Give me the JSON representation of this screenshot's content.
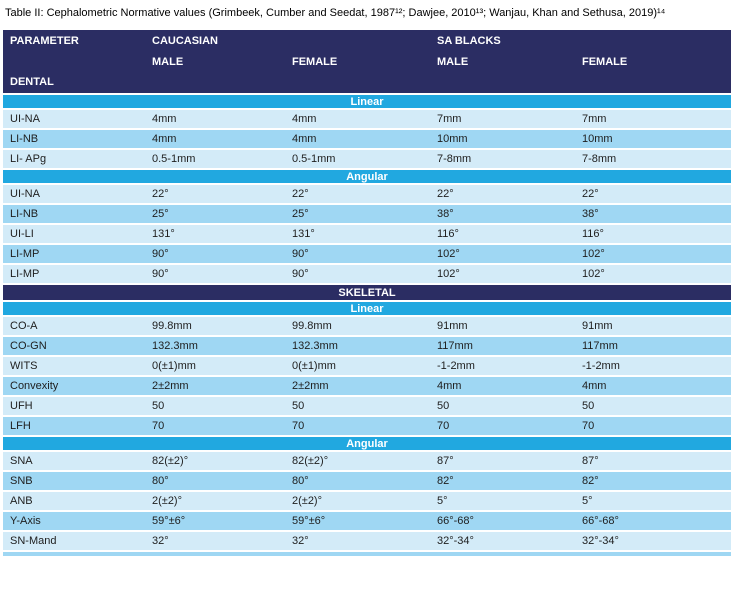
{
  "title": "Table II: Cephalometric Normative values (Grimbeek, Cumber and Seedat, 1987¹²; Dawjee, 2010¹³; Wanjau, Khan and Sethusa, 2019)¹⁴",
  "colors": {
    "header_navy": "#2b2d63",
    "band_cyan": "#21a8e0",
    "row_light": "#d3ebf8",
    "row_medium": "#9fd7f3"
  },
  "table": {
    "header": {
      "col_parameter": "PARAMETER",
      "group_caucasian": "CAUCASIAN",
      "group_sa_blacks": "SA BLACKS",
      "sub_cols": [
        "MALE",
        "FEMALE",
        "MALE",
        "FEMALE"
      ],
      "section_dental": "DENTAL"
    },
    "body": [
      {
        "band": "Linear",
        "style": "cyan"
      },
      {
        "cells": [
          "UI-NA",
          "4mm",
          "4mm",
          "7mm",
          "7mm"
        ]
      },
      {
        "cells": [
          "LI-NB",
          "4mm",
          "4mm",
          "10mm",
          "10mm"
        ]
      },
      {
        "cells": [
          "LI- APg",
          "0.5-1mm",
          "0.5-1mm",
          "7-8mm",
          "7-8mm"
        ]
      },
      {
        "band": "Angular",
        "style": "cyan"
      },
      {
        "cells": [
          "UI-NA",
          "22°",
          "22°",
          "22°",
          "22°"
        ]
      },
      {
        "cells": [
          "LI-NB",
          "25°",
          "25°",
          "38°",
          "38°"
        ]
      },
      {
        "cells": [
          "UI-LI",
          "131°",
          "131°",
          "116°",
          "116°"
        ]
      },
      {
        "cells": [
          "LI-MP",
          "90°",
          "90°",
          "102°",
          "102°"
        ]
      },
      {
        "cells": [
          "LI-MP",
          "90°",
          "90°",
          "102°",
          "102°"
        ]
      },
      {
        "band": "SKELETAL",
        "style": "navy"
      },
      {
        "band": "Linear",
        "style": "cyan"
      },
      {
        "cells": [
          "CO-A",
          "99.8mm",
          "99.8mm",
          "91mm",
          "91mm"
        ]
      },
      {
        "cells": [
          "CO-GN",
          "132.3mm",
          "132.3mm",
          "117mm",
          "117mm"
        ]
      },
      {
        "cells": [
          "WITS",
          "0(±1)mm",
          "0(±1)mm",
          "-1-2mm",
          "-1-2mm"
        ]
      },
      {
        "cells": [
          "Convexity",
          "2±2mm",
          "2±2mm",
          "4mm",
          "4mm"
        ]
      },
      {
        "cells": [
          "UFH",
          "50",
          "50",
          "50",
          "50"
        ]
      },
      {
        "cells": [
          "LFH",
          "70",
          "70",
          "70",
          "70"
        ]
      },
      {
        "band": "Angular",
        "style": "cyan"
      },
      {
        "cells": [
          "SNA",
          "82(±2)°",
          "82(±2)°",
          "87°",
          "87°"
        ]
      },
      {
        "cells": [
          "SNB",
          "80°",
          "80°",
          "82°",
          "82°"
        ]
      },
      {
        "cells": [
          "ANB",
          "2(±2)°",
          "2(±2)°",
          "5°",
          "5°"
        ]
      },
      {
        "cells": [
          "Y-Axis",
          "59°±6°",
          "59°±6°",
          "66°-68°",
          "66°-68°"
        ]
      },
      {
        "cells": [
          "SN-Mand",
          "32°",
          "32°",
          "32°-34°",
          "32°-34°"
        ]
      }
    ]
  }
}
